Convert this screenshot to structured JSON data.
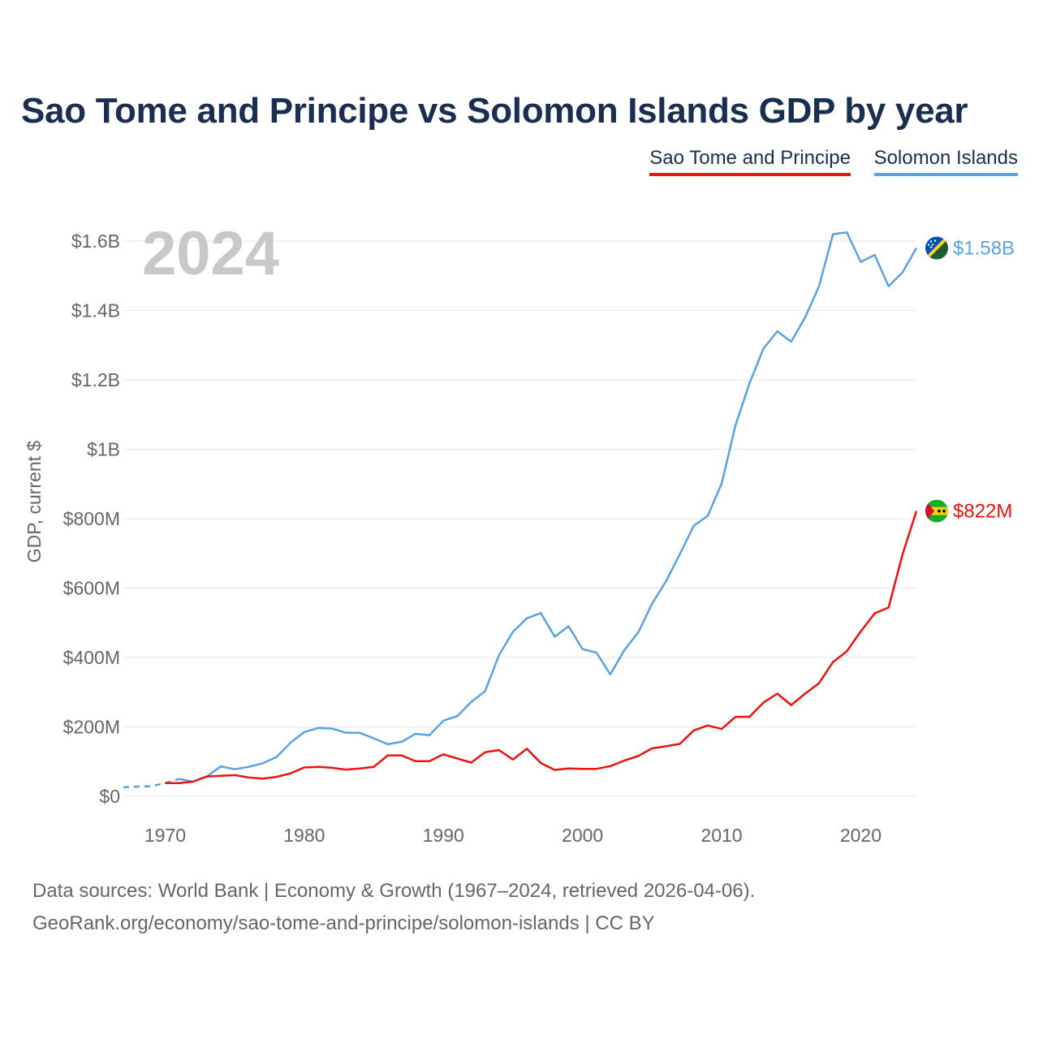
{
  "title": "Sao Tome and Principe vs Solomon Islands GDP by year",
  "legend": {
    "stp": "Sao Tome and Principe",
    "sol": "Solomon Islands"
  },
  "year_overlay": "2024",
  "source_line1": "Data sources: World Bank | Economy & Growth (1967–2024, retrieved 2026-04-06).",
  "source_line2": "GeoRank.org/economy/sao-tome-and-principe/solomon-islands | CC BY",
  "colors": {
    "stp": "#ee1111",
    "sol": "#5aa3e0",
    "title": "#1a2e4f",
    "grid": "#e6e6e6",
    "axis_text": "#666666",
    "overlay": "#c8c8c8"
  },
  "chart_data": {
    "type": "line",
    "title": "Sao Tome and Principe vs Solomon Islands GDP by year",
    "xlabel": "",
    "ylabel": "GDP, current $",
    "xlim": [
      1967,
      2024
    ],
    "ylim": [
      0,
      1600000000
    ],
    "x_ticks": [
      {
        "value": 1970,
        "label": "1970"
      },
      {
        "value": 1980,
        "label": "1980"
      },
      {
        "value": 1990,
        "label": "1990"
      },
      {
        "value": 2000,
        "label": "2000"
      },
      {
        "value": 2010,
        "label": "2010"
      },
      {
        "value": 2020,
        "label": "2020"
      }
    ],
    "y_ticks": [
      {
        "value": 0,
        "label": "$0"
      },
      {
        "value": 200000000,
        "label": "$200M"
      },
      {
        "value": 400000000,
        "label": "$400M"
      },
      {
        "value": 600000000,
        "label": "$600M"
      },
      {
        "value": 800000000,
        "label": "$800M"
      },
      {
        "value": 1000000000,
        "label": "$1B"
      },
      {
        "value": 1200000000,
        "label": "$1.2B"
      },
      {
        "value": 1400000000,
        "label": "$1.4B"
      },
      {
        "value": 1600000000,
        "label": "$1.6B"
      }
    ],
    "series": [
      {
        "name": "Solomon Islands",
        "key": "sol",
        "end_label": "$1.58B",
        "dashed_until": 1971,
        "years": [
          1967,
          1968,
          1969,
          1970,
          1971,
          1972,
          1973,
          1974,
          1975,
          1976,
          1977,
          1978,
          1979,
          1980,
          1981,
          1982,
          1983,
          1984,
          1985,
          1986,
          1987,
          1988,
          1989,
          1990,
          1991,
          1992,
          1993,
          1994,
          1995,
          1996,
          1997,
          1998,
          1999,
          2000,
          2001,
          2002,
          2003,
          2004,
          2005,
          2006,
          2007,
          2008,
          2009,
          2010,
          2011,
          2012,
          2013,
          2014,
          2015,
          2016,
          2017,
          2018,
          2019,
          2020,
          2021,
          2022,
          2023,
          2024
        ],
        "values": [
          26000000,
          28000000,
          29000000,
          38000000,
          50000000,
          42000000,
          57000000,
          86000000,
          78000000,
          85000000,
          95000000,
          113000000,
          154000000,
          185000000,
          197000000,
          195000000,
          183000000,
          183000000,
          167000000,
          150000000,
          157000000,
          180000000,
          176000000,
          218000000,
          231000000,
          272000000,
          303000000,
          407000000,
          474000000,
          513000000,
          528000000,
          460000000,
          490000000,
          424000000,
          414000000,
          351000000,
          421000000,
          472000000,
          555000000,
          620000000,
          698000000,
          780000000,
          808000000,
          901000000,
          1070000000,
          1190000000,
          1290000000,
          1340000000,
          1310000000,
          1380000000,
          1470000000,
          1620000000,
          1625000000,
          1540000000,
          1560000000,
          1470000000,
          1510000000,
          1580000000
        ]
      },
      {
        "name": "Sao Tome and Principe",
        "key": "stp",
        "end_label": "$822M",
        "dashed_until": null,
        "years": [
          1970,
          1971,
          1972,
          1973,
          1974,
          1975,
          1976,
          1977,
          1978,
          1979,
          1980,
          1981,
          1982,
          1983,
          1984,
          1985,
          1986,
          1987,
          1988,
          1989,
          1990,
          1991,
          1992,
          1993,
          1994,
          1995,
          1996,
          1997,
          1998,
          1999,
          2000,
          2001,
          2002,
          2003,
          2004,
          2005,
          2006,
          2007,
          2008,
          2009,
          2010,
          2011,
          2012,
          2013,
          2014,
          2015,
          2016,
          2017,
          2018,
          2019,
          2020,
          2021,
          2022,
          2023,
          2024
        ],
        "values": [
          38000000,
          38000000,
          42000000,
          57000000,
          59000000,
          61000000,
          54000000,
          51000000,
          56000000,
          66000000,
          83000000,
          85000000,
          82000000,
          77000000,
          80000000,
          85000000,
          118000000,
          118000000,
          101000000,
          101000000,
          121000000,
          109000000,
          97000000,
          127000000,
          133000000,
          106000000,
          137000000,
          96000000,
          76000000,
          80000000,
          79000000,
          79000000,
          87000000,
          103000000,
          116000000,
          138000000,
          144000000,
          151000000,
          190000000,
          204000000,
          194000000,
          229000000,
          229000000,
          270000000,
          296000000,
          263000000,
          296000000,
          326000000,
          387000000,
          418000000,
          475000000,
          527000000,
          544000000,
          697000000,
          822000000
        ]
      }
    ]
  }
}
